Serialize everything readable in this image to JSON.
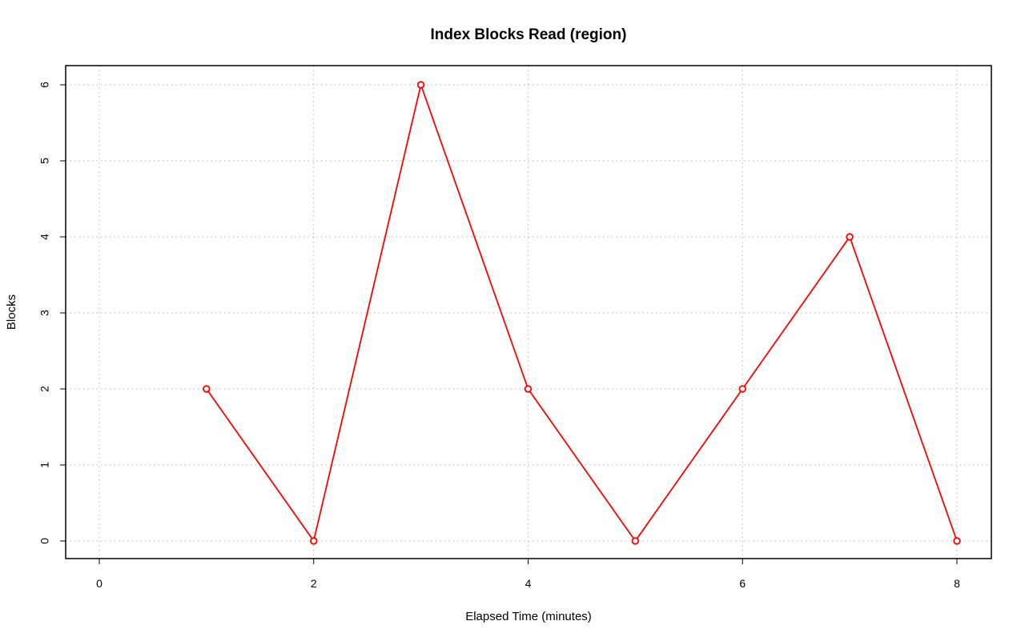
{
  "chart_data": {
    "type": "line",
    "title": "Index Blocks Read (region)",
    "xlabel": "Elapsed Time (minutes)",
    "ylabel": "Blocks",
    "xlim": [
      0,
      8
    ],
    "ylim": [
      0,
      6
    ],
    "xticks": [
      0,
      2,
      4,
      6,
      8
    ],
    "yticks": [
      0,
      1,
      2,
      3,
      4,
      5,
      6
    ],
    "grid": true,
    "colors": {
      "series": "#ff0000",
      "grid": "#c0c0c0",
      "axis": "#000000"
    },
    "series": [
      {
        "x": [
          1,
          2,
          3,
          4,
          5,
          6,
          7,
          8
        ],
        "values": [
          2,
          0,
          6,
          2,
          0,
          2,
          4,
          0
        ]
      }
    ]
  }
}
